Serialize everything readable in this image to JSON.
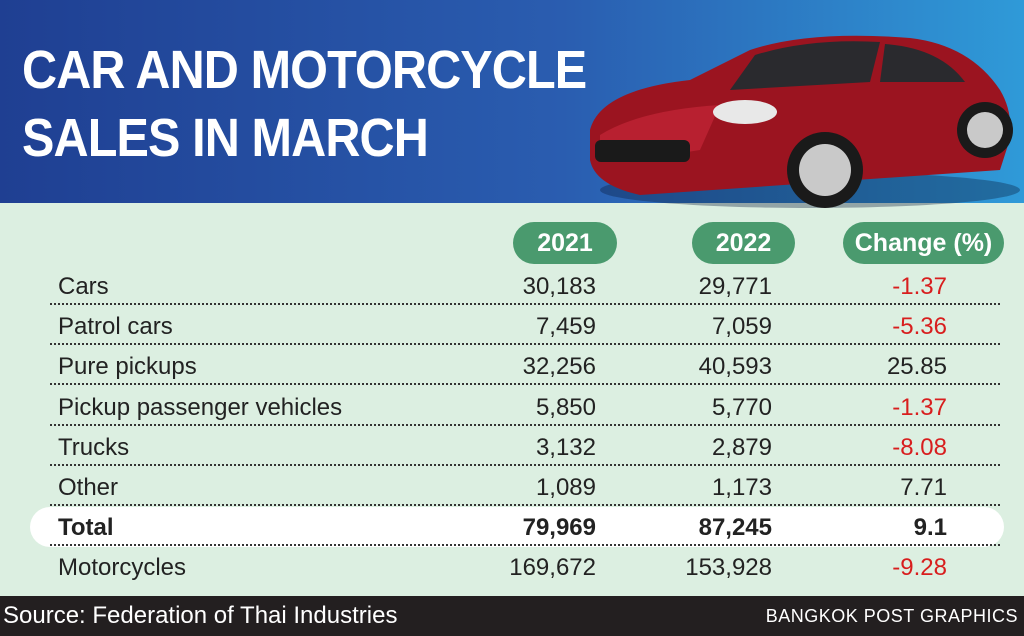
{
  "title": "CAR AND MOTORCYCLE\nSALES IN MARCH",
  "chart_data": {
    "type": "table",
    "columns": [
      "2021",
      "2022",
      "Change (%)"
    ],
    "rows": [
      {
        "label": "Cars",
        "values": [
          "30,183",
          "29,771",
          "-1.37"
        ]
      },
      {
        "label": "Patrol cars",
        "values": [
          "7,459",
          "7,059",
          "-5.36"
        ]
      },
      {
        "label": "Pure pickups",
        "values": [
          "32,256",
          "40,593",
          "25.85"
        ]
      },
      {
        "label": "Pickup passenger vehicles",
        "values": [
          "5,850",
          "5,770",
          "-1.37"
        ]
      },
      {
        "label": "Trucks",
        "values": [
          "3,132",
          "2,879",
          "-8.08"
        ]
      },
      {
        "label": "Other",
        "values": [
          "1,089",
          "1,173",
          "7.71"
        ]
      },
      {
        "label": "Total",
        "values": [
          "79,969",
          "87,245",
          "9.1"
        ]
      },
      {
        "label": "Motorcycles",
        "values": [
          "169,672",
          "153,928",
          "-9.28"
        ]
      }
    ],
    "colors": {
      "negative": "#d81e1e",
      "header_pill": "#4a9a6e",
      "background": "#dcefe1"
    }
  },
  "footer": {
    "source": "Source: Federation of Thai Industries",
    "credit": "BANGKOK POST GRAPHICS"
  }
}
